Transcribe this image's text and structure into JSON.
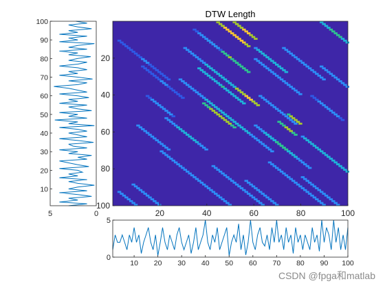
{
  "chart_data": [
    {
      "type": "heatmap",
      "title": "DTW Length",
      "xlim": [
        0,
        100
      ],
      "ylim": [
        0,
        100
      ],
      "x_ticks": [
        20,
        40,
        60,
        80,
        100
      ],
      "y_ticks": [
        20,
        40,
        60,
        80,
        100
      ],
      "y_direction": "reverse",
      "colormap": [
        "#3e26a8",
        "#2e5ae6",
        "#2c8ef7",
        "#1fb3d9",
        "#2ec38f",
        "#a6c82e",
        "#f9c632",
        "#f9fb14"
      ],
      "background_color": "#3e26a8",
      "diagonal_bands": [
        {
          "x_start": 28,
          "y_start": 31,
          "length": 40,
          "level": 0.4
        },
        {
          "x_start": 36,
          "y_start": 25,
          "length": 20,
          "level": 0.5
        },
        {
          "x_start": 40,
          "y_start": 10,
          "length": 18,
          "level": 0.65
        },
        {
          "x_start": 44,
          "y_start": 0,
          "length": 14,
          "level": 0.9
        },
        {
          "x_start": 51,
          "y_start": 0,
          "length": 10,
          "level": 0.85
        },
        {
          "x_start": 30,
          "y_start": 14,
          "length": 30,
          "level": 0.4
        },
        {
          "x_start": 60,
          "y_start": 14,
          "length": 14,
          "level": 0.45
        },
        {
          "x_start": 72,
          "y_start": 14,
          "length": 18,
          "level": 0.35
        },
        {
          "x_start": 88,
          "y_start": 0,
          "length": 12,
          "level": 0.55
        },
        {
          "x_start": 60,
          "y_start": 20,
          "length": 20,
          "level": 0.3
        },
        {
          "x_start": 88,
          "y_start": 24,
          "length": 12,
          "level": 0.3
        },
        {
          "x_start": 22,
          "y_start": 52,
          "length": 18,
          "level": 0.4
        },
        {
          "x_start": 38,
          "y_start": 44,
          "length": 14,
          "level": 0.75
        },
        {
          "x_start": 52,
          "y_start": 36,
          "length": 10,
          "level": 0.85
        },
        {
          "x_start": 20,
          "y_start": 70,
          "length": 30,
          "level": 0.35
        },
        {
          "x_start": 8,
          "y_start": 88,
          "length": 30,
          "level": 0.3
        },
        {
          "x_start": 2,
          "y_start": 92,
          "length": 12,
          "level": 0.35
        },
        {
          "x_start": 60,
          "y_start": 56,
          "length": 24,
          "level": 0.4
        },
        {
          "x_start": 64,
          "y_start": 60,
          "length": 14,
          "level": 0.55
        },
        {
          "x_start": 70,
          "y_start": 54,
          "length": 8,
          "level": 0.7
        },
        {
          "x_start": 74,
          "y_start": 50,
          "length": 6,
          "level": 0.78
        },
        {
          "x_start": 80,
          "y_start": 62,
          "length": 20,
          "level": 0.45
        },
        {
          "x_start": 42,
          "y_start": 78,
          "length": 22,
          "level": 0.3
        },
        {
          "x_start": 66,
          "y_start": 76,
          "length": 24,
          "level": 0.3
        },
        {
          "x_start": 80,
          "y_start": 84,
          "length": 18,
          "level": 0.35
        },
        {
          "x_start": 56,
          "y_start": 86,
          "length": 14,
          "level": 0.3
        },
        {
          "x_start": 10,
          "y_start": 56,
          "length": 14,
          "level": 0.3
        },
        {
          "x_start": 62,
          "y_start": 40,
          "length": 16,
          "level": 0.3
        },
        {
          "x_start": 14,
          "y_start": 40,
          "length": 12,
          "level": 0.25
        },
        {
          "x_start": 2,
          "y_start": 10,
          "length": 22,
          "level": 0.22
        },
        {
          "x_start": 84,
          "y_start": 40,
          "length": 14,
          "level": 0.25
        },
        {
          "x_start": 34,
          "y_start": 4,
          "length": 12,
          "level": 0.25
        },
        {
          "x_start": 12,
          "y_start": 24,
          "length": 18,
          "level": 0.22
        }
      ]
    },
    {
      "type": "line",
      "orientation": "vertical",
      "x_axis": "reversed",
      "xlim": [
        0,
        5
      ],
      "ylim": [
        1,
        100
      ],
      "x_ticks": [
        5,
        0
      ],
      "y_ticks": [
        10,
        20,
        30,
        40,
        50,
        60,
        70,
        80,
        90,
        100
      ],
      "line_color": "#0072bd",
      "y": [
        1,
        2,
        3,
        4,
        5,
        6,
        7,
        8,
        9,
        10,
        11,
        12,
        13,
        14,
        15,
        16,
        17,
        18,
        19,
        20,
        21,
        22,
        23,
        24,
        25,
        26,
        27,
        28,
        29,
        30,
        31,
        32,
        33,
        34,
        35,
        36,
        37,
        38,
        39,
        40,
        41,
        42,
        43,
        44,
        45,
        46,
        47,
        48,
        49,
        50,
        51,
        52,
        53,
        54,
        55,
        56,
        57,
        58,
        59,
        60,
        61,
        62,
        63,
        64,
        65,
        66,
        67,
        68,
        69,
        70,
        71,
        72,
        73,
        74,
        75,
        76,
        77,
        78,
        79,
        80,
        81,
        82,
        83,
        84,
        85,
        86,
        87,
        88,
        89,
        90,
        91,
        92,
        93,
        94,
        95,
        96,
        97,
        98,
        99,
        100
      ],
      "x": [
        3,
        1,
        4,
        2,
        3,
        0.5,
        2,
        4,
        1,
        3,
        2,
        0.2,
        2,
        3,
        1,
        4,
        2,
        3,
        1.5,
        2,
        4,
        0.8,
        2,
        3,
        4,
        1,
        2,
        0.5,
        3,
        2,
        4,
        1,
        2.5,
        3,
        0.3,
        2,
        4,
        1,
        2,
        3,
        1,
        2,
        4,
        0.2,
        3,
        2,
        4.5,
        1,
        3,
        2,
        4,
        0.5,
        2,
        3,
        1,
        4,
        2,
        3,
        0.8,
        2,
        4,
        1,
        2,
        3,
        4.6,
        2,
        1,
        3,
        0.4,
        2,
        4,
        2,
        3,
        1,
        2,
        4,
        2,
        1,
        3,
        2,
        0.6,
        3,
        2,
        4,
        1,
        3,
        2,
        0.2,
        4,
        2,
        3,
        1,
        4,
        2,
        3,
        0.5,
        2,
        3,
        1,
        2.2
      ]
    },
    {
      "type": "line",
      "xlim": [
        1,
        100
      ],
      "ylim": [
        0,
        5
      ],
      "x_ticks": [
        10,
        20,
        30,
        40,
        50,
        60,
        70,
        80,
        90,
        100
      ],
      "y_ticks": [
        0,
        5
      ],
      "line_color": "#0072bd",
      "x": [
        1,
        2,
        3,
        4,
        5,
        6,
        7,
        8,
        9,
        10,
        11,
        12,
        13,
        14,
        15,
        16,
        17,
        18,
        19,
        20,
        21,
        22,
        23,
        24,
        25,
        26,
        27,
        28,
        29,
        30,
        31,
        32,
        33,
        34,
        35,
        36,
        37,
        38,
        39,
        40,
        41,
        42,
        43,
        44,
        45,
        46,
        47,
        48,
        49,
        50,
        51,
        52,
        53,
        54,
        55,
        56,
        57,
        58,
        59,
        60,
        61,
        62,
        63,
        64,
        65,
        66,
        67,
        68,
        69,
        70,
        71,
        72,
        73,
        74,
        75,
        76,
        77,
        78,
        79,
        80,
        81,
        82,
        83,
        84,
        85,
        86,
        87,
        88,
        89,
        90,
        91,
        92,
        93,
        94,
        95,
        96,
        97,
        98,
        99,
        100
      ],
      "y": [
        1,
        3,
        2,
        2,
        3,
        2,
        1,
        3,
        2,
        4,
        2,
        3,
        0.5,
        2,
        3,
        4,
        2,
        1,
        3,
        0.2,
        2,
        4,
        2,
        1,
        3,
        2,
        1,
        3,
        4,
        2,
        1,
        2,
        3,
        0.5,
        2,
        4,
        1,
        2,
        3,
        5,
        2,
        1,
        3,
        2,
        4,
        1,
        2,
        3,
        4,
        0.2,
        2,
        3,
        2,
        4.5,
        1,
        3,
        0.3,
        2,
        5,
        2,
        1,
        3,
        4,
        2,
        1.5,
        3,
        1,
        4,
        2,
        5,
        2,
        3,
        1,
        4,
        2,
        3,
        0.5,
        4,
        2,
        3,
        1,
        3,
        2,
        1,
        4,
        2,
        3,
        0.8,
        5,
        2,
        4,
        3,
        1,
        5,
        2,
        4,
        1,
        3,
        1,
        4
      ]
    }
  ],
  "watermark": "CSDN @fpga和matlab"
}
